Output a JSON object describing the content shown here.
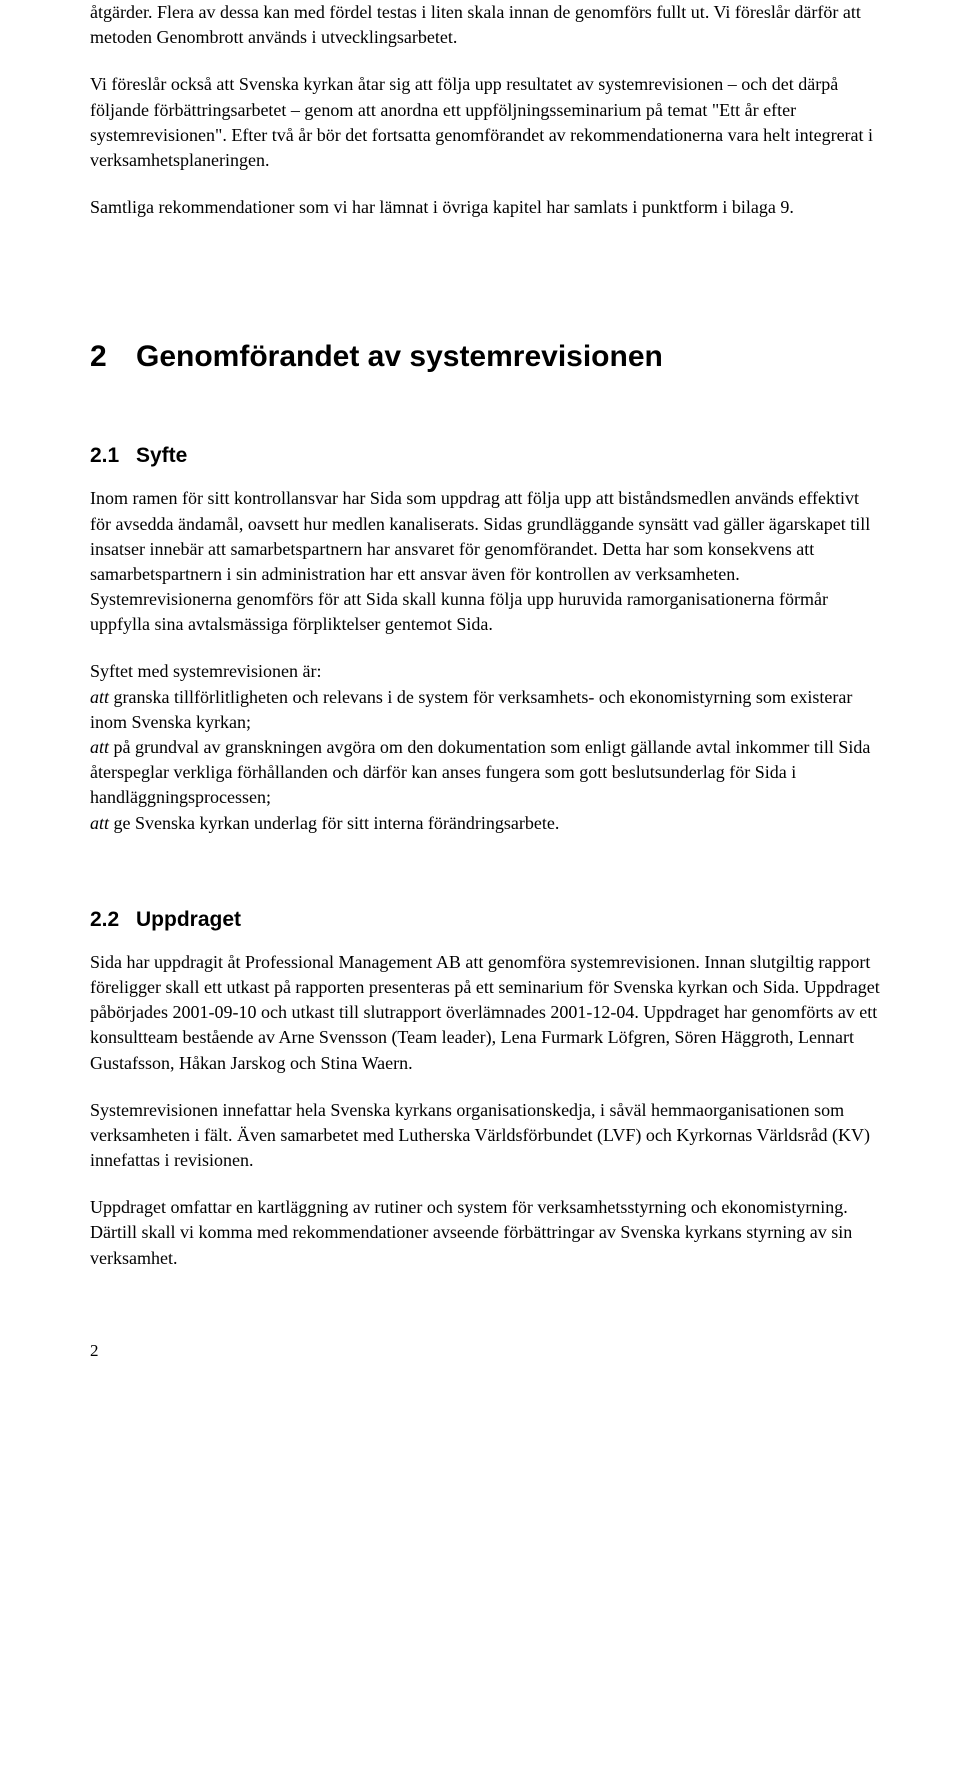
{
  "intro": {
    "p1": "åtgärder. Flera av dessa kan med fördel testas i liten skala innan de genomförs fullt ut. Vi föreslår därför att metoden Genombrott används i utvecklingsarbetet.",
    "p2": "Vi föreslår också att Svenska kyrkan åtar sig att följa upp resultatet av systemrevisionen – och det därpå följande förbättringsarbetet – genom att anordna ett uppföljningsseminarium på temat \"Ett år efter systemrevisionen\". Efter två år bör det fortsatta genomförandet av rekommendationerna vara helt integrerat i verksamhetsplaneringen.",
    "p3": "Samtliga rekommendationer som vi har lämnat i övriga kapitel har samlats i punktform i bilaga 9."
  },
  "chapter": {
    "num": "2",
    "title": "Genomförandet av systemrevisionen"
  },
  "s21": {
    "num": "2.1",
    "title": "Syfte",
    "p1": "Inom ramen för sitt kontrollansvar har Sida som uppdrag att följa upp att biståndsmedlen används effektivt för avsedda ändamål, oavsett hur medlen kanaliserats. Sidas grundläggande synsätt vad gäller ägarskapet till insatser innebär att samarbetspartnern har ansvaret för genomförandet. Detta har som konsekvens att samarbetspartnern i sin administration har ett ansvar även för kontrollen av verksamheten. Systemrevisionerna genomförs för att Sida skall kunna följa upp huruvida ramorganisationerna förmår uppfylla sina avtalsmässiga förpliktelser gentemot Sida.",
    "lead": "Syftet med systemrevisionen är:",
    "b1a": "att",
    "b1b": " granska tillförlitligheten och relevans i de system för verksamhets- och ekonomistyrning som existerar inom Svenska kyrkan;",
    "b2a": "att",
    "b2b": " på grundval av granskningen avgöra om den dokumentation som enligt gällande avtal inkommer till Sida återspeglar verkliga förhållanden och därför kan anses fungera som gott beslutsunderlag för Sida i handläggningsprocessen;",
    "b3a": "att",
    "b3b": " ge Svenska kyrkan underlag för sitt interna förändringsarbete."
  },
  "s22": {
    "num": "2.2",
    "title": "Uppdraget",
    "p1": "Sida har uppdragit åt Professional Management AB att genomföra systemrevisionen. Innan slutgiltig rapport föreligger skall ett utkast på rapporten presenteras på ett seminarium för Svenska kyrkan och Sida. Uppdraget påbörjades 2001-09-10 och utkast till slutrapport överlämnades 2001-12-04. Uppdraget har genomförts av ett konsultteam bestående av Arne Svensson (Team leader), Lena Furmark Löfgren, Sören Häggroth, Lennart Gustafsson, Håkan Jarskog och Stina Waern.",
    "p2": "Systemrevisionen innefattar hela Svenska kyrkans organisationskedja, i såväl hemmaorganisationen som verksamheten i fält. Även samarbetet med Lutherska Världsförbundet (LVF) och Kyrkornas Världsråd (KV) innefattas i revisionen.",
    "p3": "Uppdraget omfattar en kartläggning av rutiner och system för verksamhetsstyrning och ekonomistyrning. Därtill skall vi komma med rekommendationer avseende förbättringar av Svenska kyrkans styrning av sin verksamhet."
  },
  "pagenum": "2"
}
